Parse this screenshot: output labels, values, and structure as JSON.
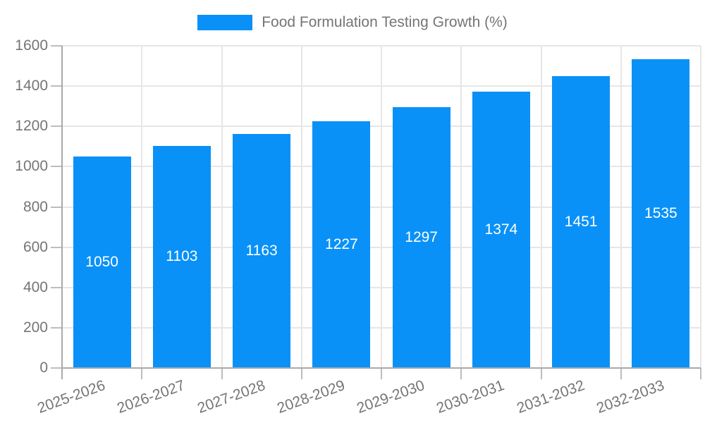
{
  "legend": {
    "label": "Food Formulation Testing Growth (%)"
  },
  "colors": {
    "bar": "#0991F8",
    "grid": "#e6e6e6",
    "axis": "#a9a9a9",
    "tick": "#bdbdbd",
    "text": "#757575",
    "bar_value_text": "#ffffff",
    "background": "#ffffff"
  },
  "chart_data": {
    "type": "bar",
    "title": "Food Formulation Testing Growth (%)",
    "categories": [
      "2025-2026",
      "2026-2027",
      "2027-2028",
      "2028-2029",
      "2029-2030",
      "2030-2031",
      "2031-2032",
      "2032-2033"
    ],
    "values": [
      1050,
      1103,
      1163,
      1227,
      1297,
      1374,
      1451,
      1535
    ],
    "series_name": "Food Formulation Testing Growth (%)",
    "xlabel": "",
    "ylabel": "",
    "ylim": [
      0,
      1600
    ],
    "ytick_step": 200,
    "ytick_labels": [
      "0",
      "200",
      "400",
      "600",
      "800",
      "1000",
      "1200",
      "1400",
      "1600"
    ],
    "grid": "horizontal and vertical, light gray",
    "legend_position": "top-center",
    "value_labels": "white, centered inside bars",
    "xtick_label_rotation_deg": -20
  }
}
